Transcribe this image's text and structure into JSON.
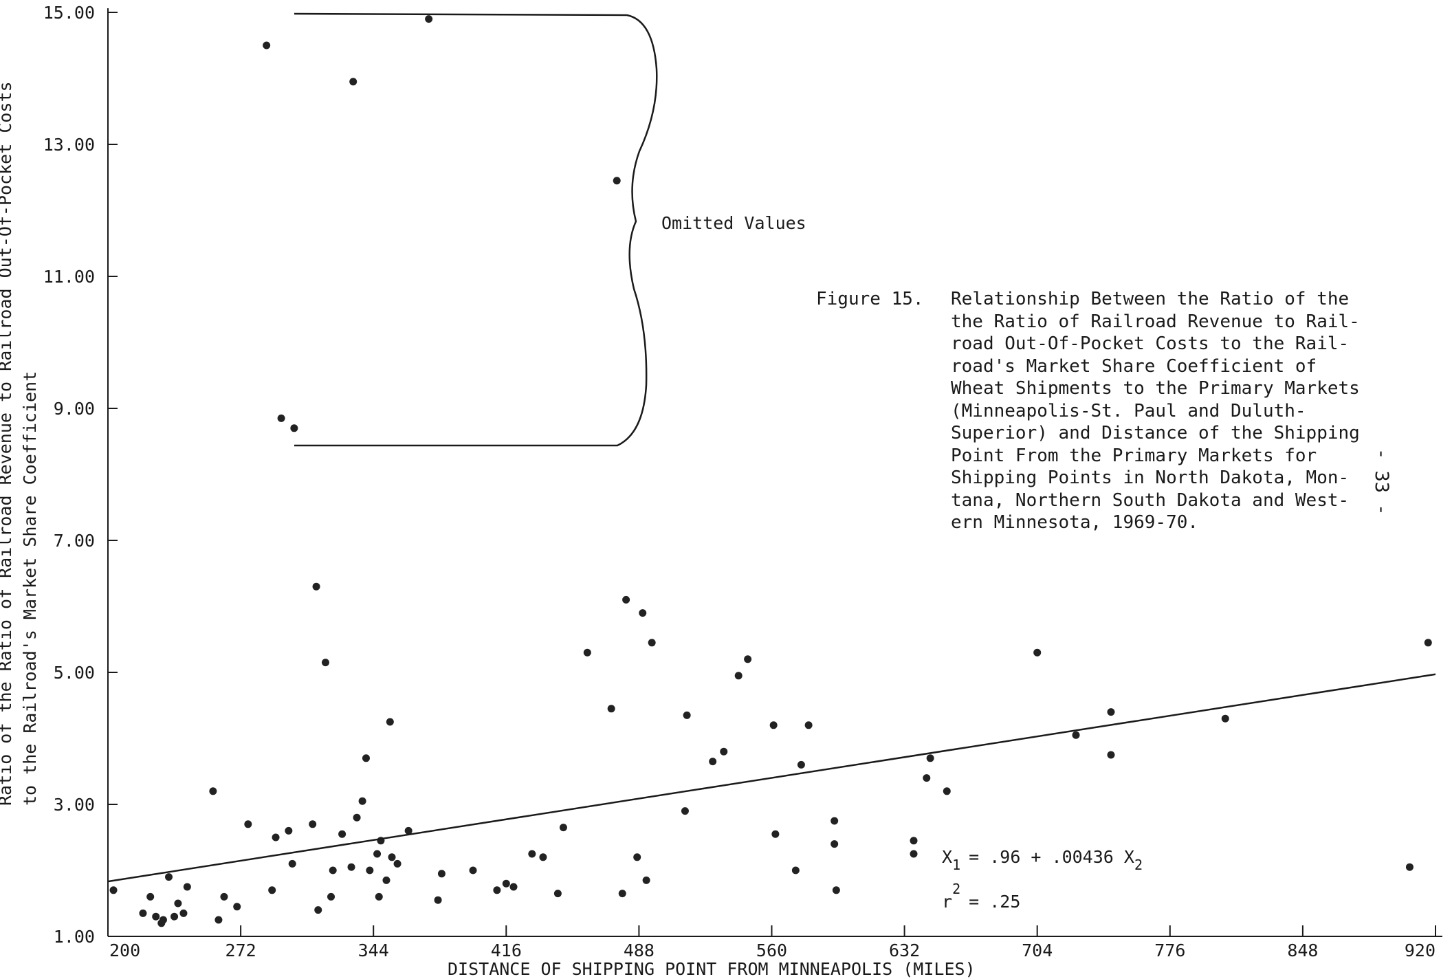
{
  "chart_data": {
    "type": "scatter",
    "title": "",
    "xlabel": "DISTANCE OF SHIPPING POINT FROM MINNEAPOLIS (MILES)",
    "ylabel_line1": "Ratio of the Ratio of Railroad Revenue to Railroad Out-Of-Pocket Costs",
    "ylabel_line2": "to the Railroad's Market Share Coefficient",
    "xlim": [
      200,
      920
    ],
    "ylim": [
      1.0,
      15.0
    ],
    "x_ticks": [
      200,
      272,
      344,
      416,
      488,
      560,
      632,
      704,
      776,
      848,
      920
    ],
    "x_tick_labels": [
      "200",
      "272",
      "344",
      "416",
      "488",
      "560",
      "632",
      "704",
      "776",
      "848",
      "920"
    ],
    "y_ticks": [
      1.0,
      3.0,
      5.0,
      7.0,
      9.0,
      11.0,
      13.0,
      15.0
    ],
    "y_tick_labels": [
      "1.00",
      "3.00",
      "5.00",
      "7.00",
      "9.00",
      "11.00",
      "13.00",
      "15.00"
    ],
    "grid": false,
    "regression": {
      "intercept": 0.96,
      "slope": 0.00436,
      "x_range": [
        200,
        920
      ]
    },
    "points": [
      [
        203,
        1.7
      ],
      [
        219,
        1.35
      ],
      [
        223,
        1.6
      ],
      [
        226,
        1.3
      ],
      [
        229,
        1.2
      ],
      [
        230,
        1.25
      ],
      [
        233,
        1.9
      ],
      [
        236,
        1.3
      ],
      [
        238,
        1.5
      ],
      [
        241,
        1.35
      ],
      [
        243,
        1.75
      ],
      [
        257,
        3.2
      ],
      [
        260,
        1.25
      ],
      [
        263,
        1.6
      ],
      [
        270,
        1.45
      ],
      [
        276,
        2.7
      ],
      [
        286,
        14.5
      ],
      [
        289,
        1.7
      ],
      [
        291,
        2.5
      ],
      [
        294,
        8.85
      ],
      [
        298,
        2.6
      ],
      [
        300,
        2.1
      ],
      [
        301,
        8.7
      ],
      [
        311,
        2.7
      ],
      [
        313,
        6.3
      ],
      [
        314,
        1.4
      ],
      [
        318,
        5.15
      ],
      [
        321,
        1.6
      ],
      [
        322,
        2.0
      ],
      [
        327,
        2.55
      ],
      [
        332,
        2.05
      ],
      [
        333,
        13.95
      ],
      [
        335,
        2.8
      ],
      [
        338,
        3.05
      ],
      [
        340,
        3.7
      ],
      [
        342,
        2.0
      ],
      [
        346,
        2.25
      ],
      [
        347,
        1.6
      ],
      [
        348,
        2.45
      ],
      [
        351,
        1.85
      ],
      [
        353,
        4.25
      ],
      [
        354,
        2.2
      ],
      [
        357,
        2.1
      ],
      [
        363,
        2.6
      ],
      [
        374,
        14.9
      ],
      [
        379,
        1.55
      ],
      [
        381,
        1.95
      ],
      [
        398,
        2.0
      ],
      [
        411,
        1.7
      ],
      [
        416,
        1.8
      ],
      [
        420,
        1.75
      ],
      [
        430,
        2.25
      ],
      [
        436,
        2.2
      ],
      [
        444,
        1.65
      ],
      [
        447,
        2.65
      ],
      [
        460,
        5.3
      ],
      [
        473,
        4.45
      ],
      [
        476,
        12.45
      ],
      [
        479,
        1.65
      ],
      [
        481,
        6.1
      ],
      [
        487,
        2.2
      ],
      [
        490,
        5.9
      ],
      [
        492,
        1.85
      ],
      [
        495,
        5.45
      ],
      [
        513,
        2.9
      ],
      [
        514,
        4.35
      ],
      [
        528,
        3.65
      ],
      [
        534,
        3.8
      ],
      [
        542,
        4.95
      ],
      [
        547,
        5.2
      ],
      [
        561,
        4.2
      ],
      [
        562,
        2.55
      ],
      [
        573,
        2.0
      ],
      [
        576,
        3.6
      ],
      [
        580,
        4.2
      ],
      [
        594,
        2.75
      ],
      [
        594,
        2.4
      ],
      [
        595,
        1.7
      ],
      [
        637,
        2.45
      ],
      [
        637,
        2.25
      ],
      [
        644,
        3.4
      ],
      [
        646,
        3.7
      ],
      [
        655,
        3.2
      ],
      [
        704,
        5.3
      ],
      [
        725,
        4.05
      ],
      [
        744,
        4.4
      ],
      [
        744,
        3.75
      ],
      [
        806,
        4.3
      ],
      [
        906,
        2.05
      ],
      [
        916,
        5.45
      ]
    ]
  },
  "omitted_label": "Omitted Values",
  "caption": {
    "label": "Figure 15.",
    "text": "Relationship Between the Ratio of the\nthe Ratio of Railroad Revenue to Rail-\nroad Out-Of-Pocket Costs to the Rail-\nroad's Market Share Coefficient of\nWheat Shipments to the Primary Markets\n(Minneapolis-St. Paul and Duluth-\nSuperior) and Distance of the Shipping\nPoint From the Primary Markets for\nShipping Points in North Dakota, Mon-\ntana, Northern South Dakota and West-\nern Minnesota, 1969-70."
  },
  "equation": {
    "lhs": "X",
    "lhs_sub": "1",
    "rhs_a": "= .96 + .00436 X",
    "rhs_sub": "2"
  },
  "r_squared": {
    "symbol": "r",
    "sup": "2",
    "value": "= .25"
  },
  "page_number": "- 33 -"
}
